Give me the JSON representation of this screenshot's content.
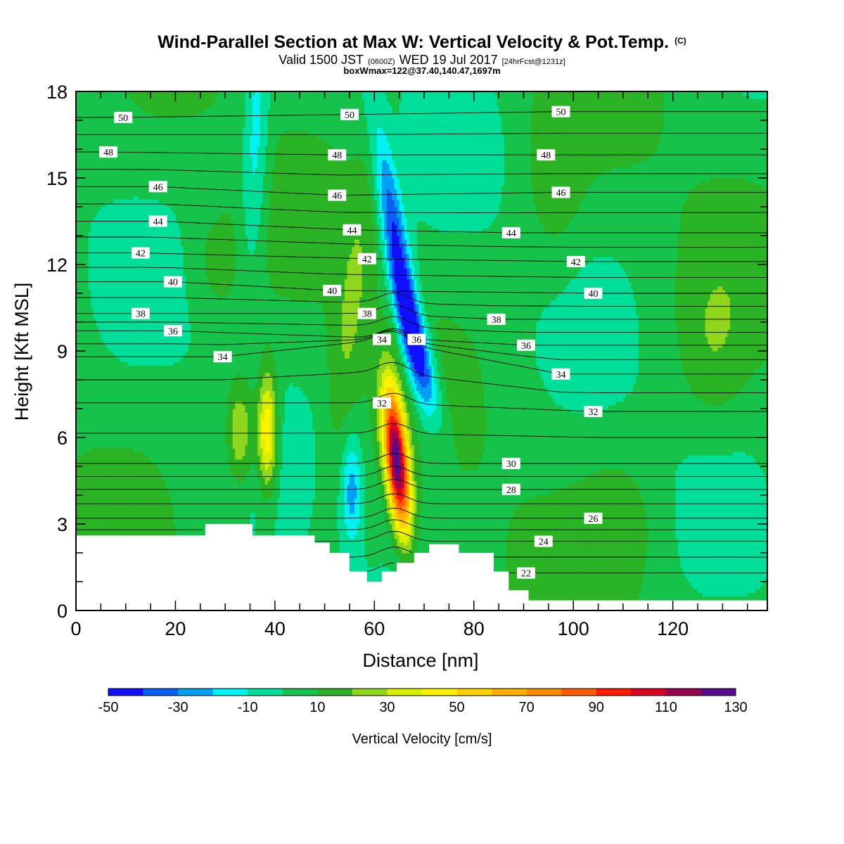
{
  "title": {
    "main": "Wind-Parallel Section at Max W: Vertical Velocity & Pot.Temp.",
    "main_suffix": "(C)",
    "valid_prefix": "Valid 1500 JST",
    "valid_utc": "(0600Z)",
    "valid_date": "WED 19 Jul 2017",
    "forecast": "[24hrFcst@1231z]",
    "box": "boxWmax=122@37.40,140.47,1697m"
  },
  "colors": {
    "w_levels": [
      {
        "from": -50,
        "to": -40,
        "color": "#1010ff"
      },
      {
        "from": -40,
        "to": -30,
        "color": "#0a5ff5"
      },
      {
        "from": -30,
        "to": -20,
        "color": "#00a0f5"
      },
      {
        "from": -20,
        "to": -10,
        "color": "#00f2f2"
      },
      {
        "from": -10,
        "to": 0,
        "color": "#00df9a"
      },
      {
        "from": 0,
        "to": 10,
        "color": "#15c24a"
      },
      {
        "from": 10,
        "to": 20,
        "color": "#2ab324"
      },
      {
        "from": 20,
        "to": 30,
        "color": "#8fd61c"
      },
      {
        "from": 30,
        "to": 40,
        "color": "#d8ef00"
      },
      {
        "from": 40,
        "to": 50,
        "color": "#fff200"
      },
      {
        "from": 50,
        "to": 60,
        "color": "#ffd000"
      },
      {
        "from": 60,
        "to": 70,
        "color": "#ffae00"
      },
      {
        "from": 70,
        "to": 80,
        "color": "#ff8a00"
      },
      {
        "from": 80,
        "to": 90,
        "color": "#ff5a00"
      },
      {
        "from": 90,
        "to": 100,
        "color": "#ff1a00"
      },
      {
        "from": 100,
        "to": 110,
        "color": "#d80020"
      },
      {
        "from": 110,
        "to": 120,
        "color": "#9b0050"
      },
      {
        "from": 120,
        "to": 130,
        "color": "#5a0a8c"
      }
    ],
    "terrain": "#ffffff",
    "contour_line": "#000000"
  },
  "chart_data": {
    "type": "heatmap",
    "title": "Wind-Parallel Section at Max W: Vertical Velocity & Pot.Temp.",
    "xlabel": "Distance [nm]",
    "ylabel": "Height [Kft MSL]",
    "xlim": [
      0,
      139
    ],
    "ylim": [
      0,
      18
    ],
    "x_ticks": [
      0,
      20,
      40,
      60,
      80,
      100,
      120
    ],
    "y_ticks": [
      0,
      3,
      6,
      9,
      12,
      15,
      18
    ],
    "colorbar": {
      "label": "Vertical Velocity [cm/s]",
      "tick_labels": [
        "-50",
        "-30",
        "-10",
        "10",
        "30",
        "50",
        "70",
        "90",
        "110",
        "130"
      ],
      "range": [
        -50,
        130
      ],
      "step": 10
    },
    "w_features": [
      {
        "name": "updraft-east",
        "x": 64.5,
        "y": 5.2,
        "peak": 125
      },
      {
        "name": "updraft-west-a",
        "x": 38.5,
        "y": 6.2,
        "peak": 55
      },
      {
        "name": "updraft-west-b",
        "x": 33,
        "y": 6.2,
        "peak": 35
      },
      {
        "name": "downdraft-upper",
        "x": 65,
        "y": 12,
        "peak": -40
      },
      {
        "name": "downdraft-mid",
        "x": 69,
        "y": 9,
        "peak": -35
      },
      {
        "name": "downdraft-low",
        "x": 55.5,
        "y": 4.2,
        "peak": -20
      }
    ],
    "theta_contours": {
      "units": "C",
      "levels": [
        22,
        24,
        26,
        28,
        30,
        32,
        34,
        36,
        38,
        40,
        42,
        44,
        46,
        48,
        50
      ],
      "labels": [
        {
          "text": "50",
          "x": 9.5,
          "y": 17.1
        },
        {
          "text": "48",
          "x": 6.5,
          "y": 15.9
        },
        {
          "text": "46",
          "x": 16.5,
          "y": 14.7
        },
        {
          "text": "44",
          "x": 16.5,
          "y": 13.5
        },
        {
          "text": "42",
          "x": 13,
          "y": 12.4
        },
        {
          "text": "40",
          "x": 19.5,
          "y": 11.4
        },
        {
          "text": "38",
          "x": 13,
          "y": 10.3
        },
        {
          "text": "36",
          "x": 19.5,
          "y": 9.7
        },
        {
          "text": "34",
          "x": 29.5,
          "y": 8.8
        },
        {
          "text": "50",
          "x": 55,
          "y": 17.2
        },
        {
          "text": "48",
          "x": 52.5,
          "y": 15.8
        },
        {
          "text": "46",
          "x": 52.5,
          "y": 14.4
        },
        {
          "text": "44",
          "x": 55.5,
          "y": 13.2
        },
        {
          "text": "42",
          "x": 58.5,
          "y": 12.2
        },
        {
          "text": "40",
          "x": 51.5,
          "y": 11.1
        },
        {
          "text": "38",
          "x": 58.5,
          "y": 10.3
        },
        {
          "text": "34",
          "x": 61.5,
          "y": 9.4
        },
        {
          "text": "36",
          "x": 68.5,
          "y": 9.4
        },
        {
          "text": "32",
          "x": 61.5,
          "y": 7.2
        },
        {
          "text": "50",
          "x": 97.5,
          "y": 17.3
        },
        {
          "text": "48",
          "x": 94.5,
          "y": 15.8
        },
        {
          "text": "46",
          "x": 97.5,
          "y": 14.5
        },
        {
          "text": "44",
          "x": 87.5,
          "y": 13.1
        },
        {
          "text": "42",
          "x": 100.5,
          "y": 12.1
        },
        {
          "text": "40",
          "x": 104,
          "y": 11.0
        },
        {
          "text": "38",
          "x": 84.5,
          "y": 10.1
        },
        {
          "text": "36",
          "x": 90.5,
          "y": 9.2
        },
        {
          "text": "34",
          "x": 97.5,
          "y": 8.2
        },
        {
          "text": "32",
          "x": 104,
          "y": 6.9
        },
        {
          "text": "30",
          "x": 87.5,
          "y": 5.1
        },
        {
          "text": "28",
          "x": 87.5,
          "y": 4.2
        },
        {
          "text": "26",
          "x": 104,
          "y": 3.2
        },
        {
          "text": "24",
          "x": 94,
          "y": 2.4
        },
        {
          "text": "22",
          "x": 90.5,
          "y": 1.3
        }
      ]
    },
    "terrain_profile": [
      [
        0,
        2.6
      ],
      [
        26,
        2.6
      ],
      [
        26,
        3.0
      ],
      [
        35.5,
        3.0
      ],
      [
        35.5,
        2.6
      ],
      [
        48,
        2.6
      ],
      [
        48,
        2.35
      ],
      [
        51,
        2.35
      ],
      [
        51,
        2.0
      ],
      [
        55,
        2.0
      ],
      [
        55,
        1.35
      ],
      [
        58.5,
        1.35
      ],
      [
        58.5,
        1.0
      ],
      [
        61.5,
        1.0
      ],
      [
        61.5,
        1.35
      ],
      [
        64.5,
        1.35
      ],
      [
        64.5,
        1.65
      ],
      [
        68,
        1.65
      ],
      [
        68,
        2.0
      ],
      [
        71,
        2.0
      ],
      [
        71,
        2.3
      ],
      [
        77,
        2.3
      ],
      [
        77,
        2.0
      ],
      [
        84,
        2.0
      ],
      [
        84,
        1.35
      ],
      [
        87,
        1.35
      ],
      [
        87,
        0.7
      ],
      [
        91,
        0.7
      ],
      [
        91,
        0.35
      ],
      [
        139,
        0.35
      ]
    ]
  }
}
